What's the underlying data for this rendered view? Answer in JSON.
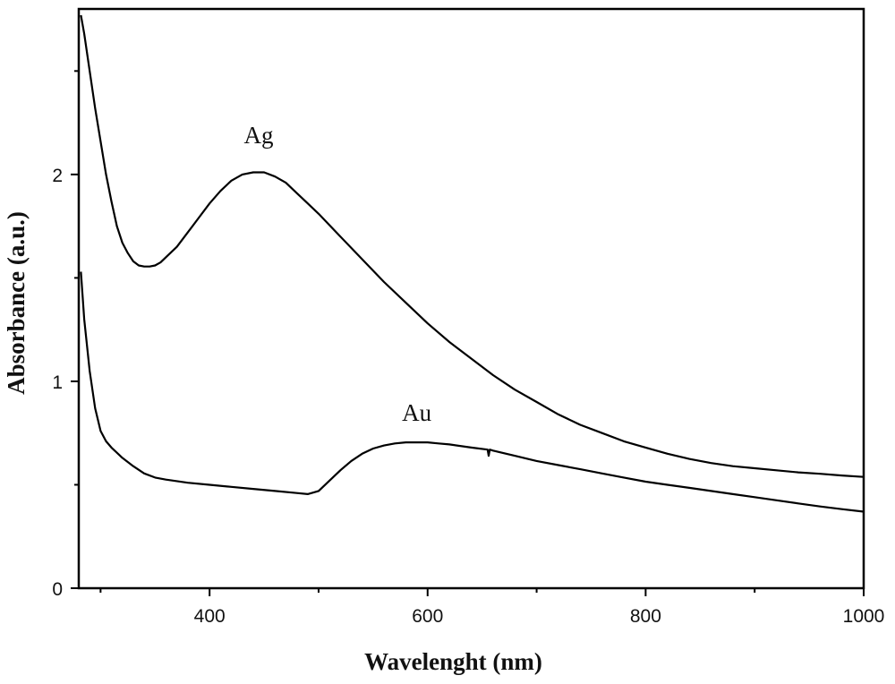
{
  "chart_data": {
    "type": "line",
    "title": "",
    "xlabel": "Wavelenght (nm)",
    "ylabel": "Absorbance (a.u.)",
    "xlim": [
      280,
      1000
    ],
    "ylim": [
      0,
      2.8
    ],
    "x_ticks": [
      400,
      600,
      800,
      1000
    ],
    "y_ticks": [
      0,
      1,
      2
    ],
    "x_minor_ticks": [
      300,
      500,
      700,
      900
    ],
    "y_minor_ticks": [
      0.5,
      1.5,
      2.5
    ],
    "grid": false,
    "legend": "none",
    "series": [
      {
        "name": "Ag",
        "color": "#000000",
        "x": [
          282,
          285,
          290,
          295,
          300,
          305,
          310,
          315,
          320,
          325,
          330,
          335,
          340,
          345,
          350,
          355,
          360,
          370,
          380,
          390,
          400,
          410,
          420,
          430,
          440,
          450,
          460,
          470,
          480,
          490,
          500,
          520,
          540,
          560,
          580,
          600,
          620,
          640,
          660,
          680,
          700,
          720,
          740,
          760,
          780,
          800,
          820,
          840,
          860,
          880,
          900,
          920,
          940,
          960,
          980,
          1000
        ],
        "y": [
          2.77,
          2.68,
          2.5,
          2.32,
          2.16,
          2.0,
          1.87,
          1.75,
          1.67,
          1.62,
          1.58,
          1.56,
          1.555,
          1.555,
          1.56,
          1.575,
          1.6,
          1.65,
          1.72,
          1.79,
          1.86,
          1.92,
          1.97,
          2.0,
          2.01,
          2.01,
          1.99,
          1.96,
          1.91,
          1.86,
          1.81,
          1.7,
          1.59,
          1.48,
          1.38,
          1.28,
          1.19,
          1.11,
          1.03,
          0.96,
          0.9,
          0.84,
          0.79,
          0.75,
          0.71,
          0.68,
          0.65,
          0.625,
          0.605,
          0.59,
          0.58,
          0.57,
          0.56,
          0.553,
          0.545,
          0.538
        ]
      },
      {
        "name": "Au",
        "color": "#000000",
        "x": [
          282,
          285,
          290,
          295,
          300,
          305,
          310,
          320,
          330,
          340,
          350,
          360,
          380,
          400,
          420,
          440,
          460,
          480,
          490,
          500,
          510,
          520,
          530,
          540,
          550,
          560,
          570,
          580,
          590,
          600,
          610,
          620,
          640,
          655,
          656,
          657,
          660,
          680,
          700,
          720,
          740,
          760,
          780,
          800,
          820,
          840,
          860,
          880,
          900,
          920,
          940,
          960,
          980,
          1000
        ],
        "y": [
          1.53,
          1.3,
          1.05,
          0.87,
          0.76,
          0.71,
          0.68,
          0.63,
          0.59,
          0.555,
          0.535,
          0.525,
          0.51,
          0.5,
          0.49,
          0.48,
          0.47,
          0.46,
          0.455,
          0.47,
          0.52,
          0.57,
          0.615,
          0.65,
          0.675,
          0.69,
          0.7,
          0.705,
          0.705,
          0.705,
          0.7,
          0.695,
          0.68,
          0.67,
          0.64,
          0.67,
          0.665,
          0.64,
          0.615,
          0.595,
          0.575,
          0.555,
          0.535,
          0.515,
          0.5,
          0.485,
          0.47,
          0.455,
          0.44,
          0.425,
          0.41,
          0.395,
          0.382,
          0.37
        ]
      }
    ],
    "annotations": [
      {
        "text": "Ag",
        "x": 445,
        "y": 2.15
      },
      {
        "text": "Au",
        "x": 590,
        "y": 0.81
      }
    ]
  }
}
